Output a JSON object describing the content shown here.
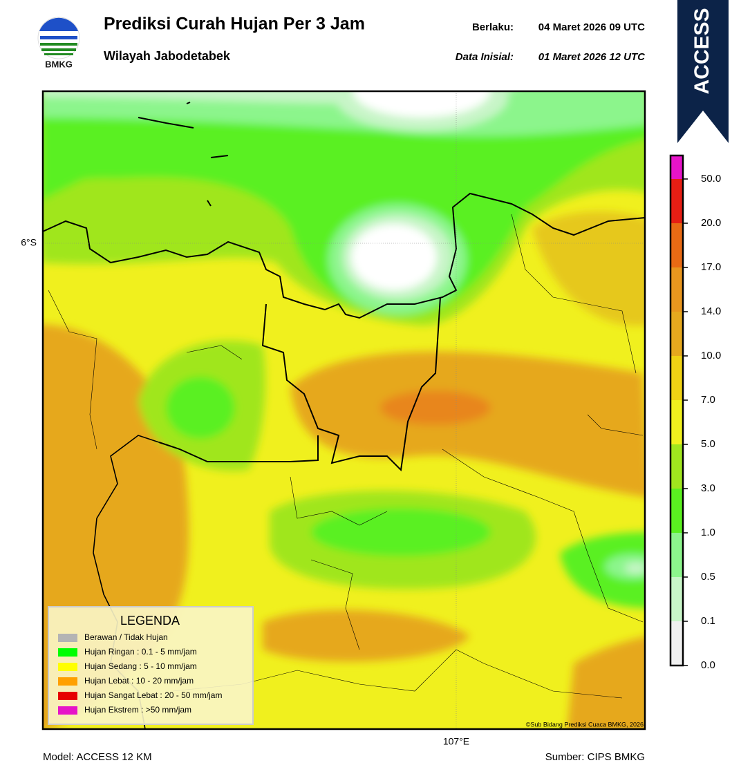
{
  "header": {
    "logo_text": "BMKG",
    "title": "Prediksi Curah Hujan Per 3 Jam",
    "subtitle": "Wilayah Jabodetabek",
    "valid_label": "Berlaku:",
    "valid_value": "04 Maret 2026 09 UTC",
    "init_label": "Data Inisial:",
    "init_value": "01 Maret 2026 12 UTC",
    "badge": "ACCESS"
  },
  "map": {
    "lat_label": "6°S",
    "lon_label": "107°E",
    "credit": "©Sub Bidang Prediksi Cuaca BMKG, 2026"
  },
  "legend": {
    "title": "LEGENDA",
    "items": [
      {
        "label": "Berawan / Tidak Hujan",
        "color": "#b4b4b4"
      },
      {
        "label": "Hujan Ringan : 0.1 - 5 mm/jam",
        "color": "#00ff00"
      },
      {
        "label": "Hujan Sedang : 5 - 10 mm/jam",
        "color": "#ffff00"
      },
      {
        "label": "Hujan Lebat : 10 - 20 mm/jam",
        "color": "#ffa000"
      },
      {
        "label": "Hujan Sangat Lebat : 20 - 50 mm/jam",
        "color": "#e60000"
      },
      {
        "label": "Hujan Ekstrem : >50 mm/jam",
        "color": "#e614c8"
      }
    ]
  },
  "colorbar": {
    "colors": [
      "#f0f0f0",
      "#c8f5c8",
      "#8cf58c",
      "#5af020",
      "#a0e61e",
      "#f0f01e",
      "#f0d214",
      "#e6a81e",
      "#e8961e",
      "#e86a14",
      "#e61e14",
      "#e614c8"
    ],
    "ticks": [
      {
        "value": 0,
        "label": "0.0"
      },
      {
        "value": 0.1,
        "label": "0.1"
      },
      {
        "value": 0.5,
        "label": "0.5"
      },
      {
        "value": 1,
        "label": "1.0"
      },
      {
        "value": 3,
        "label": "3.0"
      },
      {
        "value": 5,
        "label": "5.0"
      },
      {
        "value": 7,
        "label": "7.0"
      },
      {
        "value": 10,
        "label": "10.0"
      },
      {
        "value": 14,
        "label": "14.0"
      },
      {
        "value": 17,
        "label": "17.0"
      },
      {
        "value": 20,
        "label": "20.0"
      },
      {
        "value": 50,
        "label": "50.0"
      }
    ]
  },
  "footer": {
    "model": "Model: ACCESS 12 KM",
    "source": "Sumber: CIPS BMKG"
  }
}
